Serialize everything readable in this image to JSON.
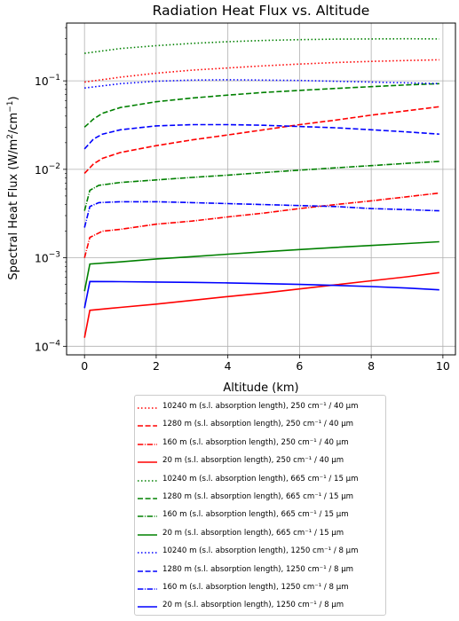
{
  "chart_data": {
    "type": "line",
    "title": "Radiation Heat Flux vs. Altitude",
    "xlabel": "Altitude (km)",
    "ylabel_main": "Spectral Heat Flux (W/m",
    "ylabel_sup1": "2",
    "ylabel_mid": "/cm",
    "ylabel_sup2": "−1",
    "ylabel_end": ")",
    "yscale": "log",
    "xlim": [
      -0.5,
      10.35
    ],
    "ylim": [
      8e-05,
      0.45
    ],
    "grid": true,
    "legend_position": "below",
    "x_ticks": [
      "0",
      "2",
      "4",
      "6",
      "8",
      "10"
    ],
    "x_tick_values": [
      0,
      2,
      4,
      6,
      8,
      10
    ],
    "y_ticks": [
      {
        "base": "10",
        "exp": "−4",
        "value": 0.0001
      },
      {
        "base": "10",
        "exp": "−3",
        "value": 0.001
      },
      {
        "base": "10",
        "exp": "−2",
        "value": 0.01
      },
      {
        "base": "10",
        "exp": "−1",
        "value": 0.1
      }
    ],
    "series": [
      {
        "name": "10240 m (s.l. absorption length), 250 cm⁻¹ / 40 μm",
        "color": "#ff0000",
        "style": "dotted",
        "x": [
          0,
          1,
          2,
          3,
          4,
          5,
          6,
          7,
          8,
          9,
          9.9
        ],
        "y": [
          0.097,
          0.11,
          0.122,
          0.132,
          0.14,
          0.148,
          0.155,
          0.161,
          0.166,
          0.17,
          0.173
        ]
      },
      {
        "name": "1280 m (s.l. absorption length), 250 cm⁻¹ / 40 μm",
        "color": "#ff0000",
        "style": "dashed",
        "x": [
          0,
          0.25,
          0.5,
          1,
          2,
          3,
          4,
          5,
          6,
          7,
          8,
          9,
          9.9
        ],
        "y": [
          0.009,
          0.0115,
          0.0133,
          0.0155,
          0.0185,
          0.0215,
          0.0245,
          0.028,
          0.032,
          0.036,
          0.041,
          0.046,
          0.051
        ]
      },
      {
        "name": "160 m (s.l. absorption length), 250 cm⁻¹ / 40 μm",
        "color": "#ff0000",
        "style": "dashdot",
        "x": [
          0,
          0.15,
          0.5,
          1,
          2,
          3,
          4,
          5,
          6,
          7,
          8,
          9,
          9.9
        ],
        "y": [
          0.001,
          0.0017,
          0.002,
          0.0021,
          0.0024,
          0.0026,
          0.0029,
          0.0032,
          0.0036,
          0.004,
          0.0044,
          0.0049,
          0.0054
        ]
      },
      {
        "name": "20 m (s.l. absorption length), 250 cm⁻¹ / 40 μm",
        "color": "#ff0000",
        "style": "solid",
        "x": [
          0,
          0.15,
          1,
          2,
          3,
          4,
          5,
          6,
          7,
          8,
          9,
          9.9
        ],
        "y": [
          0.000125,
          0.000255,
          0.000275,
          0.0003,
          0.00033,
          0.000365,
          0.0004,
          0.000445,
          0.000495,
          0.00055,
          0.00061,
          0.00068
        ]
      },
      {
        "name": "10240 m (s.l. absorption length), 665 cm⁻¹ / 15 μm",
        "color": "#008000",
        "style": "dotted",
        "x": [
          0,
          1,
          2,
          3,
          4,
          5,
          6,
          7,
          8,
          9,
          9.9
        ],
        "y": [
          0.205,
          0.232,
          0.25,
          0.265,
          0.277,
          0.286,
          0.292,
          0.296,
          0.298,
          0.299,
          0.298
        ]
      },
      {
        "name": "1280 m (s.l. absorption length), 665 cm⁻¹ / 15 μm",
        "color": "#008000",
        "style": "dashed",
        "x": [
          0,
          0.25,
          0.5,
          1,
          2,
          3,
          4,
          5,
          6,
          7,
          8,
          9,
          9.9
        ],
        "y": [
          0.03,
          0.037,
          0.043,
          0.05,
          0.058,
          0.064,
          0.069,
          0.074,
          0.078,
          0.082,
          0.086,
          0.09,
          0.093
        ]
      },
      {
        "name": "160 m (s.l. absorption length), 665 cm⁻¹ / 15 μm",
        "color": "#008000",
        "style": "dashdot",
        "x": [
          0,
          0.15,
          0.4,
          1,
          2,
          3,
          4,
          5,
          6,
          7,
          8,
          9,
          9.9
        ],
        "y": [
          0.0034,
          0.0058,
          0.0066,
          0.0071,
          0.0076,
          0.0081,
          0.0086,
          0.0092,
          0.0098,
          0.0104,
          0.011,
          0.0117,
          0.0123
        ]
      },
      {
        "name": "20 m (s.l. absorption length), 665 cm⁻¹ / 15 μm",
        "color": "#008000",
        "style": "solid",
        "x": [
          0,
          0.15,
          1,
          2,
          3,
          4,
          5,
          6,
          7,
          8,
          9,
          9.9
        ],
        "y": [
          0.00042,
          0.00085,
          0.0009,
          0.00097,
          0.00103,
          0.0011,
          0.00117,
          0.00124,
          0.00131,
          0.00138,
          0.00145,
          0.00152
        ]
      },
      {
        "name": "10240 m (s.l. absorption length), 1250 cm⁻¹ / 8 μm",
        "color": "#0000ff",
        "style": "dotted",
        "x": [
          0,
          1,
          2,
          3,
          4,
          5,
          6,
          7,
          8,
          9,
          9.9
        ],
        "y": [
          0.083,
          0.093,
          0.099,
          0.102,
          0.103,
          0.102,
          0.101,
          0.099,
          0.097,
          0.095,
          0.093
        ]
      },
      {
        "name": "1280 m (s.l. absorption length), 1250 cm⁻¹ / 8 μm",
        "color": "#0000ff",
        "style": "dashed",
        "x": [
          0,
          0.25,
          0.5,
          1,
          2,
          3,
          4,
          5,
          6,
          7,
          8,
          9,
          9.9
        ],
        "y": [
          0.017,
          0.022,
          0.025,
          0.028,
          0.031,
          0.032,
          0.032,
          0.0315,
          0.0305,
          0.0295,
          0.028,
          0.0265,
          0.025
        ]
      },
      {
        "name": "160 m (s.l. absorption length), 1250 cm⁻¹ / 8 μm",
        "color": "#0000ff",
        "style": "dashdot",
        "x": [
          0,
          0.15,
          0.4,
          1,
          2,
          3,
          4,
          5,
          6,
          7,
          8,
          9,
          9.9
        ],
        "y": [
          0.0022,
          0.0038,
          0.0042,
          0.0043,
          0.0043,
          0.0042,
          0.0041,
          0.004,
          0.0039,
          0.0038,
          0.0036,
          0.0035,
          0.0034
        ]
      },
      {
        "name": "20 m (s.l. absorption length), 1250 cm⁻¹ / 8 μm",
        "color": "#0000ff",
        "style": "solid",
        "x": [
          0,
          0.15,
          1,
          2,
          3,
          4,
          5,
          6,
          7,
          8,
          9,
          9.9
        ],
        "y": [
          0.00027,
          0.00054,
          0.000538,
          0.000533,
          0.000527,
          0.00052,
          0.000511,
          0.0005,
          0.000488,
          0.000473,
          0.000455,
          0.000435
        ]
      }
    ]
  }
}
